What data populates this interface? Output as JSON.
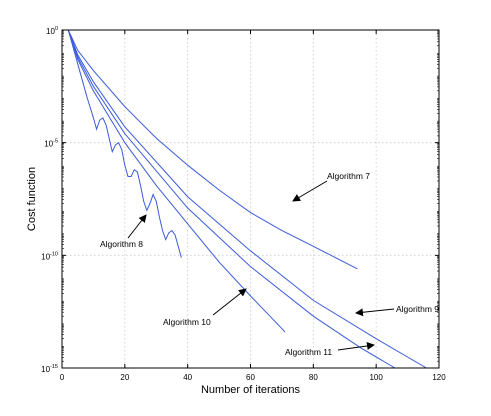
{
  "chart_data": {
    "type": "line",
    "title": "",
    "xlabel": "Number of iterations",
    "ylabel": "Cost function",
    "xlim": [
      0,
      120
    ],
    "ylim_log10": [
      -15,
      0
    ],
    "yscale": "log",
    "grid": true,
    "xticks": [
      0,
      20,
      40,
      60,
      80,
      100,
      120
    ],
    "yticks": [
      {
        "base": "10",
        "exp": "0",
        "log10": 0
      },
      {
        "base": "10",
        "exp": "-5",
        "log10": -5
      },
      {
        "base": "10",
        "exp": "-10",
        "log10": -10
      },
      {
        "base": "10",
        "exp": "-15",
        "log10": -15
      }
    ],
    "series": [
      {
        "name": "Algorithm 7",
        "x": [
          2,
          5,
          10,
          20,
          30,
          40,
          50,
          60,
          70,
          80,
          94
        ],
        "log10_y": [
          0,
          -0.9,
          -1.8,
          -3.4,
          -4.8,
          -6.0,
          -7.1,
          -8.1,
          -8.9,
          -9.6,
          -10.6
        ]
      },
      {
        "name": "Algorithm 9",
        "x": [
          2,
          5,
          10,
          20,
          40,
          60,
          80,
          100,
          116
        ],
        "log10_y": [
          0,
          -1.1,
          -2.3,
          -4.3,
          -7.4,
          -9.8,
          -12.0,
          -13.7,
          -15.0
        ]
      },
      {
        "name": "Algorithm 11",
        "x": [
          2,
          5,
          10,
          20,
          40,
          60,
          80,
          95,
          106
        ],
        "log10_y": [
          0,
          -1.2,
          -2.5,
          -4.6,
          -7.9,
          -10.5,
          -12.7,
          -14.1,
          -15.0
        ]
      },
      {
        "name": "Algorithm 10",
        "x": [
          2,
          5,
          10,
          20,
          30,
          40,
          50,
          60,
          71
        ],
        "log10_y": [
          0,
          -1.3,
          -2.7,
          -5.0,
          -6.9,
          -8.6,
          -10.3,
          -11.8,
          -13.4
        ]
      },
      {
        "name": "Algorithm 8",
        "x": [
          2,
          4,
          6,
          8,
          10,
          11,
          12,
          13,
          14,
          15,
          16,
          17,
          18,
          19,
          20,
          21,
          22,
          23,
          24,
          25,
          26,
          27,
          28,
          29,
          30,
          31,
          32,
          33,
          34,
          35,
          36,
          37,
          38
        ],
        "log10_y": [
          0,
          -1.0,
          -2.0,
          -3.0,
          -3.9,
          -4.4,
          -4.0,
          -3.9,
          -4.2,
          -4.8,
          -5.4,
          -5.1,
          -5.0,
          -5.3,
          -6.0,
          -6.5,
          -6.5,
          -6.2,
          -6.3,
          -6.9,
          -7.6,
          -8.0,
          -7.7,
          -7.3,
          -7.6,
          -8.3,
          -8.9,
          -9.3,
          -9.0,
          -8.9,
          -9.1,
          -9.6,
          -10.1
        ]
      }
    ],
    "annotations": [
      {
        "text": "Algorithm 7",
        "target_series": "Algorithm 7"
      },
      {
        "text": "Algorithm 8",
        "target_series": "Algorithm 8"
      },
      {
        "text": "Algorithm 10",
        "target_series": "Algorithm 10"
      },
      {
        "text": "Algorithm 9",
        "target_series": "Algorithm 9"
      },
      {
        "text": "Algorithm 11",
        "target_series": "Algorithm 11"
      }
    ],
    "colors": {
      "series": "#3b5bdb",
      "axes": "#000000",
      "grid": "#c8c8c8"
    }
  }
}
